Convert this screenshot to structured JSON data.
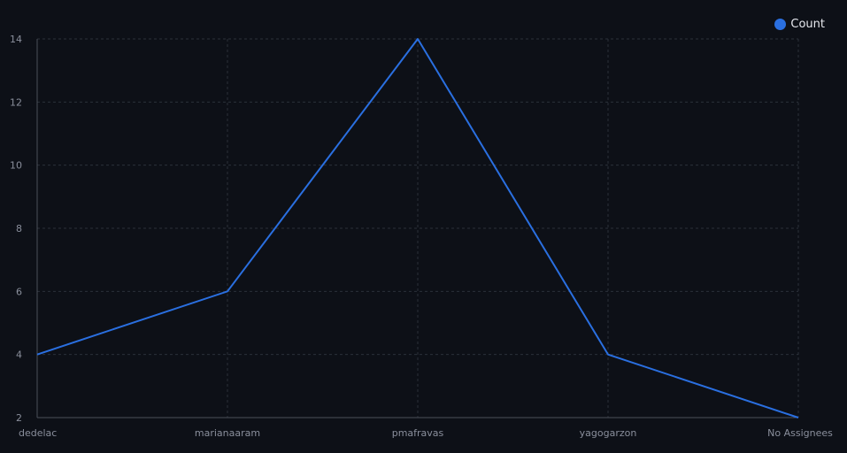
{
  "chart_data": {
    "type": "line",
    "categories": [
      "dedelac",
      "marianaaram",
      "pmafravas",
      "yagogarzon",
      "No Assignees"
    ],
    "series": [
      {
        "name": "Count",
        "values": [
          4,
          6,
          14,
          4,
          2
        ],
        "color": "#2a6fe0"
      }
    ],
    "y_ticks": [
      2,
      4,
      6,
      8,
      10,
      12,
      14
    ],
    "ylim": [
      2,
      14
    ],
    "grid": true,
    "legend_position": "top-right",
    "colors": {
      "background": "#0d1017",
      "grid": "#2b303a",
      "axis": "#4a4f5a",
      "tick_text": "#8a8f9c",
      "legend_text": "#e6e8ee"
    }
  }
}
